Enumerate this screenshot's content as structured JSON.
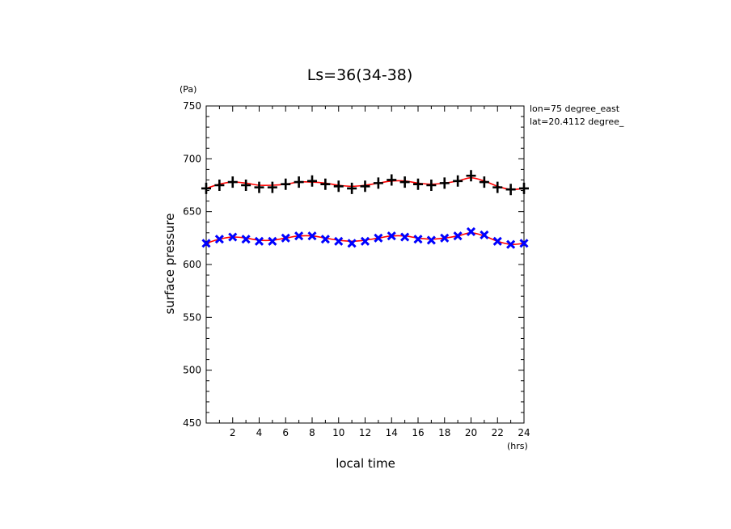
{
  "chart_data": {
    "type": "scatter",
    "title": "Ls=36(34-38)",
    "xlabel": "local time",
    "xunit": "(hrs)",
    "ylabel": "surface pressure",
    "yunit": "(Pa)",
    "annotations": [
      "lon=75 degree_east",
      "lat=20.4112 degree_"
    ],
    "xlim": [
      0,
      24
    ],
    "ylim": [
      450,
      750
    ],
    "xticks": [
      2,
      4,
      6,
      8,
      10,
      12,
      14,
      16,
      18,
      20,
      22,
      24
    ],
    "yticks": [
      450,
      500,
      550,
      600,
      650,
      700,
      750
    ],
    "grid": false,
    "legend": "none",
    "x": [
      0,
      1,
      2,
      3,
      4,
      5,
      6,
      7,
      8,
      9,
      10,
      11,
      12,
      13,
      14,
      15,
      16,
      17,
      18,
      19,
      20,
      21,
      22,
      23,
      24
    ],
    "series": [
      {
        "marker": "plus",
        "color": "#000000",
        "fit_color": "#ff0000",
        "values": [
          672,
          675,
          678,
          675,
          673,
          673,
          676,
          678,
          679,
          676,
          674,
          672,
          674,
          677,
          680,
          678,
          676,
          675,
          677,
          679,
          684,
          678,
          673,
          671,
          672
        ],
        "fit": [
          672,
          676,
          678,
          677,
          675,
          675,
          676,
          678,
          678,
          677,
          675,
          674,
          675,
          677,
          679,
          679,
          677,
          676,
          677,
          679,
          682,
          679,
          674,
          671,
          672
        ]
      },
      {
        "marker": "x",
        "color": "#0000ff",
        "fit_color": "#ff0000",
        "values": [
          620,
          624,
          626,
          624,
          622,
          622,
          625,
          627,
          627,
          624,
          622,
          620,
          622,
          625,
          627,
          626,
          624,
          623,
          625,
          627,
          631,
          628,
          622,
          619,
          620
        ],
        "fit": [
          620,
          624,
          626,
          625,
          623,
          623,
          625,
          627,
          627,
          625,
          623,
          622,
          623,
          625,
          627,
          627,
          625,
          624,
          625,
          627,
          630,
          627,
          622,
          619,
          620
        ]
      }
    ]
  }
}
